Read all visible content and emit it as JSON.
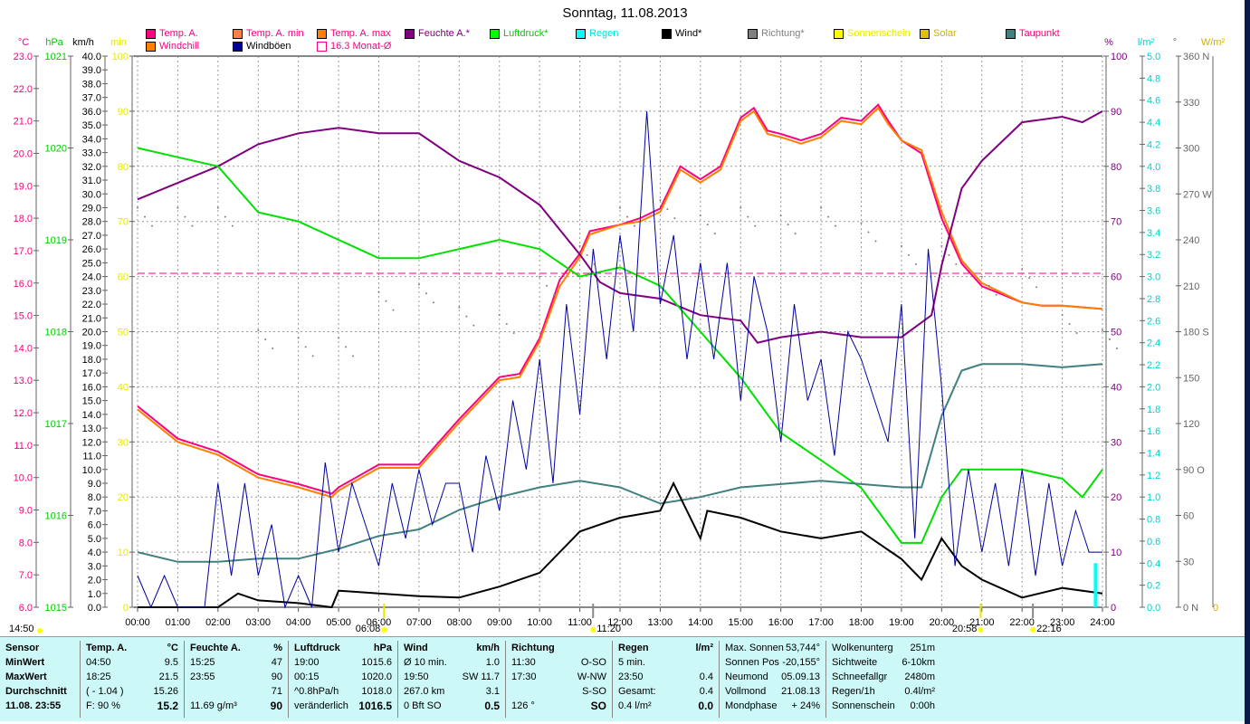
{
  "title": "Sonntag, 11.08.2013",
  "legend": [
    {
      "label": "Temp. A.",
      "color": "#ff0080",
      "text": "#ff0080"
    },
    {
      "label": "Temp. A. min",
      "color": "#ff8040",
      "text": "#ff0080"
    },
    {
      "label": "Temp. A. max",
      "color": "#ff8000",
      "text": "#ff0080"
    },
    {
      "label": "Feuchte A.*",
      "color": "#800080",
      "text": "#800080"
    },
    {
      "label": "Luftdruck*",
      "color": "#00ff00",
      "text": "#00cc00"
    },
    {
      "label": "Regen",
      "color": "#00ffff",
      "text": "#00e0e0"
    },
    {
      "label": "Wind*",
      "color": "#000000",
      "text": "#000000"
    },
    {
      "label": "Richtung*",
      "color": "#808080",
      "text": "#808080"
    },
    {
      "label": "Sonnenschein",
      "color": "#ffff00",
      "text": "#e8e800"
    },
    {
      "label": "Solar",
      "color": "#e0c000",
      "text": "#d0b000"
    },
    {
      "label": "Taupunkt",
      "color": "#408080",
      "text": "#ff0080"
    },
    {
      "label": "Windchill",
      "color": "#ff8000",
      "text": "#ff0080"
    },
    {
      "label": "Windböen",
      "color": "#000099",
      "text": "#000000"
    },
    {
      "label": "16.3 Monat-Ø",
      "color": "#ff0080",
      "text": "#ff0080"
    }
  ],
  "chart_data": {
    "type": "line",
    "title": "Sonntag, 11.08.2013",
    "x_unit": "hour",
    "xlim": [
      0,
      24
    ],
    "x_ticks": [
      "00:00",
      "01:00",
      "02:00",
      "03:00",
      "04:00",
      "05:00",
      "06:00",
      "07:00",
      "08:00",
      "09:00",
      "10:00",
      "11:00",
      "12:00",
      "13:00",
      "14:00",
      "15:00",
      "16:00",
      "17:00",
      "18:00",
      "19:00",
      "20:00",
      "21:00",
      "22:00",
      "23:00",
      "24:00"
    ],
    "axes": {
      "temp": {
        "unit": "°C",
        "range": [
          6,
          23
        ],
        "step": 1
      },
      "pressure": {
        "unit": "hPa",
        "range": [
          1015,
          1021
        ],
        "step": 1
      },
      "wind": {
        "unit": "km/h",
        "range": [
          0,
          40
        ],
        "step": 1
      },
      "sun": {
        "unit": "min",
        "range": [
          0,
          100
        ],
        "step": 10
      },
      "humidity": {
        "unit": "%",
        "range": [
          0,
          100
        ],
        "step": 10
      },
      "rain": {
        "unit": "l/m²",
        "range": [
          0,
          5
        ],
        "step": 0.2
      },
      "direction": {
        "unit": "°",
        "range": [
          0,
          360
        ],
        "step": 30,
        "labels": {
          "0": "N",
          "90": "O",
          "180": "S",
          "270": "W",
          "360": "N"
        }
      },
      "solar": {
        "unit": "W/m²",
        "range": [
          0,
          0
        ]
      }
    },
    "monthly_avg_temp": 16.3,
    "series": [
      {
        "name": "Temp. A.",
        "axis": "temp",
        "color": "#ff0080",
        "x": [
          0,
          1,
          2,
          3,
          4,
          4.83,
          5,
          6,
          7,
          8,
          9,
          9.5,
          10,
          10.5,
          11,
          11.25,
          12,
          12.5,
          13,
          13.5,
          14,
          14.5,
          15,
          15.33,
          15.67,
          16,
          16.5,
          17,
          17.5,
          18,
          18.42,
          18.67,
          19,
          19.5,
          20,
          20.5,
          21,
          22,
          22.5,
          23,
          24
        ],
        "y": [
          12.2,
          11.2,
          10.8,
          10.1,
          9.8,
          9.5,
          9.7,
          10.4,
          10.4,
          11.8,
          13.1,
          13.2,
          14.3,
          16.1,
          16.9,
          17.6,
          17.8,
          18.0,
          18.3,
          19.6,
          19.2,
          19.6,
          21.1,
          21.4,
          20.7,
          20.6,
          20.4,
          20.6,
          21.1,
          21.0,
          21.5,
          21.0,
          20.4,
          20.0,
          18.0,
          16.6,
          15.9,
          15.4,
          15.3,
          15.3,
          15.2
        ]
      },
      {
        "name": "Windchill",
        "axis": "temp",
        "color": "#ff8000",
        "x": [
          0,
          1,
          2,
          3,
          4,
          4.83,
          5,
          6,
          7,
          8,
          9,
          9.5,
          10,
          10.5,
          11,
          11.25,
          12,
          12.5,
          13,
          13.5,
          14,
          14.5,
          15,
          15.33,
          15.67,
          16,
          16.5,
          17,
          17.5,
          18,
          18.42,
          18.67,
          19,
          19.5,
          20,
          20.5,
          21,
          22,
          22.5,
          23,
          24
        ],
        "y": [
          12.1,
          11.1,
          10.7,
          10.0,
          9.7,
          9.4,
          9.6,
          10.3,
          10.3,
          11.7,
          13.0,
          13.1,
          14.2,
          15.9,
          16.8,
          17.5,
          17.8,
          17.9,
          18.2,
          19.5,
          19.1,
          19.5,
          21.0,
          21.3,
          20.6,
          20.5,
          20.3,
          20.5,
          21.0,
          20.9,
          21.4,
          20.9,
          20.4,
          20.1,
          18.2,
          16.7,
          16.0,
          15.4,
          15.3,
          15.3,
          15.2
        ]
      },
      {
        "name": "Feuchte A.*",
        "axis": "humidity",
        "color": "#800080",
        "x": [
          0,
          1,
          2,
          3,
          4,
          5,
          6,
          7,
          8,
          9,
          10,
          11,
          11.5,
          12,
          13,
          14,
          15,
          15.42,
          16,
          17,
          18,
          19,
          19.75,
          20,
          20.5,
          21,
          22,
          23,
          23.5,
          24
        ],
        "y": [
          74,
          77,
          80,
          84,
          86,
          87,
          86,
          86,
          81,
          78,
          73,
          64,
          59,
          57,
          56,
          53,
          52,
          48,
          49,
          50,
          49,
          49,
          53,
          62,
          76,
          81,
          88,
          89,
          88,
          90
        ]
      },
      {
        "name": "Luftdruck*",
        "axis": "pressure",
        "color": "#00e000",
        "x": [
          0,
          1,
          2,
          3,
          4,
          5,
          6,
          7,
          8,
          9,
          10,
          11,
          12,
          13,
          14,
          15,
          16,
          17,
          18,
          19,
          19.5,
          20,
          20.5,
          21,
          22,
          23,
          23.5,
          24
        ],
        "y": [
          1020.0,
          1019.9,
          1019.8,
          1019.3,
          1019.2,
          1019.0,
          1018.8,
          1018.8,
          1018.9,
          1019.0,
          1018.9,
          1018.6,
          1018.7,
          1018.5,
          1018.0,
          1017.5,
          1016.9,
          1016.6,
          1016.3,
          1015.7,
          1015.7,
          1016.2,
          1016.5,
          1016.5,
          1016.5,
          1016.4,
          1016.2,
          1016.5
        ]
      },
      {
        "name": "Taupunkt",
        "axis": "temp",
        "color": "#408080",
        "x": [
          0,
          1,
          2,
          3,
          4,
          5,
          6,
          7,
          8,
          9,
          10,
          11,
          12,
          13,
          14,
          15,
          16,
          17,
          18,
          19,
          19.5,
          20,
          20.5,
          21,
          22,
          23,
          24
        ],
        "y": [
          7.7,
          7.4,
          7.4,
          7.5,
          7.5,
          7.8,
          8.2,
          8.4,
          9.0,
          9.4,
          9.7,
          9.9,
          9.7,
          9.2,
          9.4,
          9.7,
          9.8,
          9.9,
          9.8,
          9.7,
          9.7,
          11.9,
          13.3,
          13.5,
          13.5,
          13.4,
          13.5
        ]
      },
      {
        "name": "Wind*",
        "axis": "wind",
        "color": "#000000",
        "x": [
          0,
          2,
          2.5,
          3,
          4,
          4.83,
          5,
          6,
          7,
          8,
          9,
          10,
          11,
          12,
          13,
          13.33,
          14,
          14.17,
          15,
          16,
          17,
          18,
          19,
          19.5,
          20,
          20.5,
          21,
          22,
          23,
          24
        ],
        "y": [
          0,
          0,
          1,
          0.5,
          0.3,
          0,
          1.2,
          1,
          0.8,
          0.7,
          1.5,
          2.5,
          5.5,
          6.5,
          7,
          9,
          5,
          7,
          6.5,
          5.5,
          5,
          5.5,
          3.5,
          2,
          5,
          3,
          2,
          0.7,
          1.4,
          1
        ]
      },
      {
        "name": "Windböen",
        "axis": "wind",
        "color": "#0000a0",
        "x_step_minutes": 20,
        "y": [
          2.3,
          0,
          2.3,
          0,
          0,
          0,
          9,
          2.3,
          9,
          2.3,
          6,
          0,
          2.3,
          0,
          10.5,
          4,
          9,
          6,
          3,
          9,
          5,
          10,
          6,
          9,
          9,
          4,
          11,
          7,
          15,
          10,
          18,
          9,
          22,
          14,
          26,
          18,
          27,
          20,
          36,
          22,
          27,
          18,
          25,
          18,
          25,
          15,
          24,
          20,
          12,
          22,
          15,
          18,
          11,
          20,
          18,
          15,
          12,
          22,
          5,
          26,
          16,
          3,
          10,
          4,
          9,
          3,
          10,
          2.3,
          9,
          3,
          7,
          4,
          4
        ]
      },
      {
        "name": "Richtung*",
        "axis": "direction",
        "color": "#808080",
        "x": [
          0,
          1,
          2,
          3,
          4,
          5,
          6,
          7,
          8,
          9,
          10,
          11,
          12,
          13,
          14,
          15,
          16,
          17,
          18,
          19,
          20,
          21,
          22,
          23,
          24
        ],
        "y": [
          255,
          255,
          255,
          175,
          170,
          170,
          200,
          205,
          190,
          185,
          210,
          230,
          255,
          260,
          250,
          255,
          250,
          255,
          245,
          230,
          230,
          210,
          215,
          185,
          175
        ]
      },
      {
        "name": "Regen",
        "axis": "rain",
        "color": "#00ffff",
        "x": [
          23.83
        ],
        "y": [
          0.4
        ]
      }
    ],
    "markers": [
      {
        "label": "14:50",
        "color": "#ffff00"
      },
      {
        "label": "06:08",
        "color": "#ffff00"
      },
      {
        "label": "11:20",
        "color": "#ffff00"
      },
      {
        "label": "20:58",
        "color": "#ffff00"
      },
      {
        "label": "22:16",
        "color": "#ffff00"
      }
    ]
  },
  "table": {
    "cols": [
      {
        "h": [
          "Sensor",
          ""
        ],
        "r": [
          [
            "MinWert",
            ""
          ],
          [
            "MaxWert",
            ""
          ],
          [
            "Durchschnitt",
            ""
          ],
          [
            "11.08. 23:55",
            ""
          ]
        ]
      },
      {
        "h": [
          "Temp. A.",
          "°C"
        ],
        "r": [
          [
            "04:50",
            "9.5"
          ],
          [
            "18:25",
            "21.5"
          ],
          [
            "( - 1.04 )",
            "15.26"
          ],
          [
            "F: 90 %",
            "15.2"
          ]
        ]
      },
      {
        "h": [
          "Feuchte A.",
          "%"
        ],
        "r": [
          [
            "15:25",
            "47"
          ],
          [
            "23:55",
            "90"
          ],
          [
            "",
            "71"
          ],
          [
            "11.69 g/m³",
            "90"
          ]
        ]
      },
      {
        "h": [
          "Luftdruck",
          "hPa"
        ],
        "r": [
          [
            "19:00",
            "1015.6"
          ],
          [
            "00:15",
            "1020.0"
          ],
          [
            "^0.8hPa/h",
            "1018.0"
          ],
          [
            "veränderlich",
            "1016.5"
          ]
        ]
      },
      {
        "h": [
          "Wind",
          "km/h"
        ],
        "r": [
          [
            "Ø 10 min.",
            "1.0"
          ],
          [
            "19:50",
            "SW 11.7"
          ],
          [
            "267.0 km",
            "3.1"
          ],
          [
            "0 Bft SO",
            "0.5"
          ]
        ]
      },
      {
        "h": [
          "Richtung",
          ""
        ],
        "r": [
          [
            "11:30",
            "O-SO"
          ],
          [
            "17:30",
            "W-NW"
          ],
          [
            "",
            "S-SO"
          ],
          [
            "126 °",
            "SO"
          ]
        ]
      },
      {
        "h": [
          "Regen",
          "l/m²"
        ],
        "r": [
          [
            "5 min.",
            ""
          ],
          [
            "23:50",
            "0.4"
          ],
          [
            "Gesamt:",
            "0.4"
          ],
          [
            "0.4 l/m²",
            "0.0"
          ]
        ]
      },
      {
        "h": [
          "Max. Sonnen",
          "53,744°"
        ],
        "r": [
          [
            "Sonnen Pos",
            "-20,155°"
          ],
          [
            "Neumond",
            "05.09.13"
          ],
          [
            "Vollmond",
            "21.08.13"
          ],
          [
            "Mondphase",
            "+ 24%"
          ]
        ]
      },
      {
        "h": [
          "Wolkenunterg",
          "251m"
        ],
        "r": [
          [
            "Sichtweite",
            "6-10km"
          ],
          [
            "Schneefallgr",
            "2480m"
          ],
          [
            "Regen/1h",
            "0.4l/m²"
          ],
          [
            "Sonnenschein",
            "0:00h"
          ]
        ]
      }
    ]
  }
}
